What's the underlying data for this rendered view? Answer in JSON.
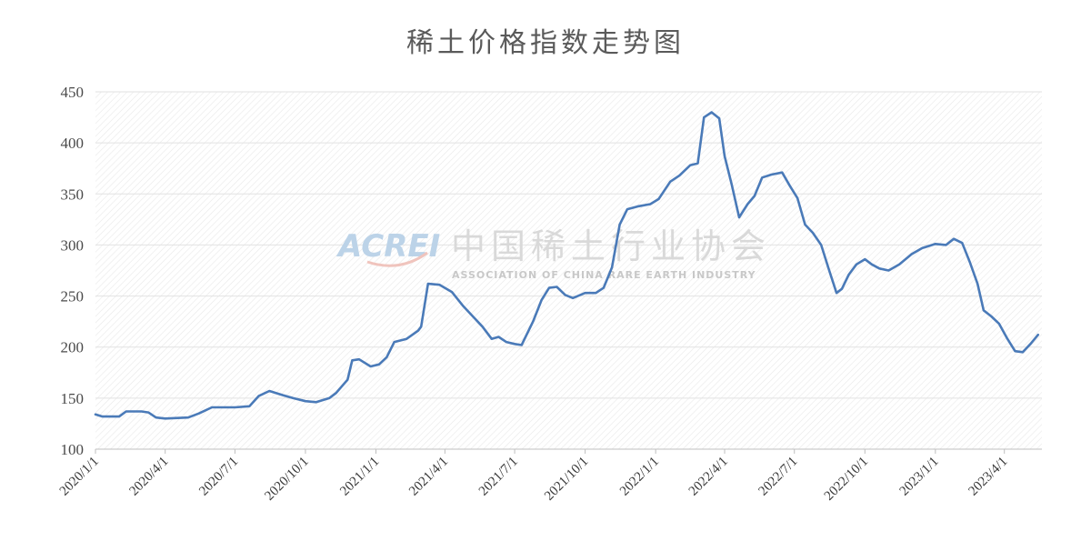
{
  "chart_data": {
    "type": "line",
    "title": "稀土价格指数走势图",
    "xlabel": "",
    "ylabel": "",
    "ylim": [
      100,
      450
    ],
    "yticks": [
      100,
      150,
      200,
      250,
      300,
      350,
      400,
      450
    ],
    "xticks": [
      "2020/1/1",
      "2020/4/1",
      "2020/7/1",
      "2020/10/1",
      "2021/1/1",
      "2021/4/1",
      "2021/7/1",
      "2021/10/1",
      "2022/1/1",
      "2022/4/1",
      "2022/7/1",
      "2022/10/1",
      "2023/1/1",
      "2023/4/1"
    ],
    "grid": true,
    "legend": "none",
    "line_color": "#4a7ab8",
    "x": [
      "2020-01-01",
      "2020-01-10",
      "2020-02-01",
      "2020-02-10",
      "2020-03-01",
      "2020-03-10",
      "2020-03-20",
      "2020-04-01",
      "2020-05-01",
      "2020-05-15",
      "2020-06-01",
      "2020-06-10",
      "2020-07-01",
      "2020-07-20",
      "2020-08-01",
      "2020-08-15",
      "2020-09-01",
      "2020-09-15",
      "2020-10-01",
      "2020-10-15",
      "2020-11-01",
      "2020-11-10",
      "2020-11-25",
      "2020-12-01",
      "2020-12-10",
      "2020-12-25",
      "2021-01-05",
      "2021-01-15",
      "2021-01-25",
      "2021-02-10",
      "2021-02-25",
      "2021-03-01",
      "2021-03-10",
      "2021-03-25",
      "2021-04-10",
      "2021-04-25",
      "2021-05-05",
      "2021-05-20",
      "2021-06-01",
      "2021-06-10",
      "2021-06-20",
      "2021-07-01",
      "2021-07-10",
      "2021-07-25",
      "2021-08-05",
      "2021-08-15",
      "2021-08-25",
      "2021-09-05",
      "2021-09-15",
      "2021-10-01",
      "2021-10-15",
      "2021-10-25",
      "2021-11-05",
      "2021-11-15",
      "2021-11-25",
      "2021-12-10",
      "2021-12-25",
      "2022-01-05",
      "2022-01-20",
      "2022-02-01",
      "2022-02-15",
      "2022-02-25",
      "2022-03-05",
      "2022-03-15",
      "2022-03-25",
      "2022-04-01",
      "2022-04-10",
      "2022-04-20",
      "2022-05-01",
      "2022-05-10",
      "2022-05-20",
      "2022-06-01",
      "2022-06-15",
      "2022-06-25",
      "2022-07-05",
      "2022-07-15",
      "2022-07-25",
      "2022-08-05",
      "2022-08-15",
      "2022-08-25",
      "2022-09-01",
      "2022-09-10",
      "2022-09-20",
      "2022-10-01",
      "2022-10-10",
      "2022-10-20",
      "2022-11-01",
      "2022-11-15",
      "2022-12-01",
      "2022-12-15",
      "2023-01-01",
      "2023-01-15",
      "2023-01-25",
      "2023-02-05",
      "2023-02-15",
      "2023-02-25",
      "2023-03-05",
      "2023-03-15",
      "2023-03-25",
      "2023-04-05",
      "2023-04-15",
      "2023-04-25",
      "2023-05-05",
      "2023-05-15"
    ],
    "values": [
      134,
      132,
      132,
      137,
      137,
      136,
      131,
      130,
      131,
      135,
      141,
      141,
      141,
      142,
      152,
      157,
      153,
      150,
      147,
      146,
      150,
      155,
      168,
      187,
      188,
      181,
      183,
      190,
      205,
      208,
      216,
      220,
      262,
      261,
      254,
      240,
      232,
      220,
      208,
      210,
      205,
      203,
      202,
      225,
      246,
      258,
      259,
      251,
      248,
      253,
      253,
      258,
      278,
      320,
      335,
      338,
      340,
      345,
      362,
      368,
      378,
      380,
      425,
      430,
      424,
      387,
      360,
      327,
      340,
      348,
      366,
      369,
      371,
      358,
      346,
      320,
      312,
      300,
      276,
      253,
      257,
      271,
      281,
      286,
      281,
      277,
      275,
      281,
      291,
      297,
      301,
      300,
      306,
      302,
      283,
      262,
      236,
      230,
      223,
      208,
      196,
      195,
      203,
      212
    ]
  },
  "watermark": {
    "abbr": "ACREI",
    "name_cn": "中国稀土行业协会",
    "name_en": "ASSOCIATION OF CHINA RARE EARTH INDUSTRY"
  }
}
